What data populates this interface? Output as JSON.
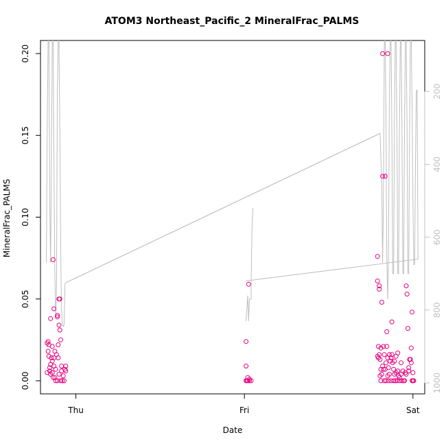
{
  "chart_data": {
    "type": "scatter",
    "title": "ATOM3 Northeast_Pacific_2 MineralFrac_PALMS",
    "xlabel": "Date",
    "ylabel": "MineralFrac_PALMS",
    "x_ticks": [
      {
        "label": "Thu",
        "value": 0
      },
      {
        "label": "Fri",
        "value": 1
      },
      {
        "label": "Sat",
        "value": 2
      }
    ],
    "xlim": [
      -0.21,
      2.07
    ],
    "ylim": [
      -0.008,
      0.208
    ],
    "y_ticks": [
      "0.00",
      "0.05",
      "0.10",
      "0.15",
      "0.20"
    ],
    "y2_ticks": [
      "200",
      "400",
      "600",
      "800",
      "1000"
    ],
    "y2lim": [
      1030,
      60
    ],
    "grid": false,
    "legend": "none",
    "colors": {
      "points": "#e6007e",
      "altitude_line": "#bebebe",
      "axis": "#000000",
      "right_axis": "#c0c0c0"
    },
    "series": [
      {
        "values": [
          [
            -0.17,
            0.005
          ],
          [
            -0.17,
            0.023
          ],
          [
            -0.165,
            0.024
          ],
          [
            -0.165,
            0.018
          ],
          [
            -0.16,
            0.015
          ],
          [
            -0.16,
            0.022
          ],
          [
            -0.155,
            0.006
          ],
          [
            -0.155,
            0.008
          ],
          [
            -0.15,
            0.004
          ],
          [
            -0.15,
            0.038
          ],
          [
            -0.15,
            0.01
          ],
          [
            -0.145,
            0.014
          ],
          [
            -0.14,
            0.021
          ],
          [
            -0.14,
            0.012
          ],
          [
            -0.14,
            0.005
          ],
          [
            -0.135,
            0.002
          ],
          [
            -0.135,
            0.074
          ],
          [
            -0.13,
            0.014
          ],
          [
            -0.13,
            0.044
          ],
          [
            -0.13,
            0.009
          ],
          [
            -0.125,
            0.018
          ],
          [
            -0.125,
            0.002
          ],
          [
            -0.12,
            0.0
          ],
          [
            -0.12,
            0.007
          ],
          [
            -0.115,
            0.016
          ],
          [
            -0.11,
            0.04
          ],
          [
            -0.11,
            0.039
          ],
          [
            -0.11,
            0.0
          ],
          [
            -0.105,
            0.022
          ],
          [
            -0.105,
            0.014
          ],
          [
            -0.1,
            0.004
          ],
          [
            -0.1,
            0.034
          ],
          [
            -0.1,
            0.05
          ],
          [
            -0.095,
            0.05
          ],
          [
            -0.095,
            0.031
          ],
          [
            -0.09,
            0.025
          ],
          [
            -0.09,
            0.0
          ],
          [
            -0.085,
            0.009
          ],
          [
            -0.085,
            0.006
          ],
          [
            -0.08,
            0.0
          ],
          [
            -0.075,
            0.003
          ],
          [
            -0.07,
            0.0
          ],
          [
            -0.065,
            0.007
          ],
          [
            -0.06,
            0.009
          ],
          [
            -0.06,
            0.006
          ],
          [
            1.01,
            0.024
          ],
          [
            1.01,
            0.009
          ],
          [
            1.01,
            0.0
          ],
          [
            1.015,
            0.0
          ],
          [
            1.02,
            0.002
          ],
          [
            1.02,
            0.0
          ],
          [
            1.025,
            0.059
          ],
          [
            1.03,
            0.0
          ],
          [
            1.03,
            0.001
          ],
          [
            1.04,
            0.0
          ],
          [
            1.79,
            0.076
          ],
          [
            1.79,
            0.061
          ],
          [
            1.79,
            0.015
          ],
          [
            1.795,
            0.014
          ],
          [
            1.795,
            0.021
          ],
          [
            1.8,
            0.058
          ],
          [
            1.8,
            0.056
          ],
          [
            1.8,
            0.016
          ],
          [
            1.805,
            0.013
          ],
          [
            1.805,
            0.003
          ],
          [
            1.81,
            0.007
          ],
          [
            1.81,
            0.02
          ],
          [
            1.81,
            0.0
          ],
          [
            1.815,
            0.048
          ],
          [
            1.815,
            0.004
          ],
          [
            1.82,
            0.125
          ],
          [
            1.82,
            0.2
          ],
          [
            1.82,
            0.009
          ],
          [
            1.825,
            0.021
          ],
          [
            1.825,
            0.007
          ],
          [
            1.83,
            0.0
          ],
          [
            1.83,
            0.016
          ],
          [
            1.835,
            0.125
          ],
          [
            1.835,
            0.007
          ],
          [
            1.84,
            0.0
          ],
          [
            1.84,
            0.011
          ],
          [
            1.845,
            0.03
          ],
          [
            1.845,
            0.021
          ],
          [
            1.85,
            0.2
          ],
          [
            1.85,
            0.014
          ],
          [
            1.85,
            0.003
          ],
          [
            1.855,
            0.008
          ],
          [
            1.855,
            0.0
          ],
          [
            1.86,
            0.016
          ],
          [
            1.86,
            0.004
          ],
          [
            1.865,
            0.012
          ],
          [
            1.87,
            0.0
          ],
          [
            1.87,
            0.014
          ],
          [
            1.875,
            0.036
          ],
          [
            1.875,
            0.016
          ],
          [
            1.88,
            0.011
          ],
          [
            1.885,
            0.007
          ],
          [
            1.885,
            0.0
          ],
          [
            1.89,
            0.004
          ],
          [
            1.89,
            0.012
          ],
          [
            1.895,
            0.0
          ],
          [
            1.9,
            0.005
          ],
          [
            1.9,
            0.015
          ],
          [
            1.905,
            0.0
          ],
          [
            1.91,
            0.017
          ],
          [
            1.91,
            0.006
          ],
          [
            1.915,
            0.003
          ],
          [
            1.92,
            0.002
          ],
          [
            1.92,
            0.0
          ],
          [
            1.93,
            0.004
          ],
          [
            1.93,
            0.011
          ],
          [
            1.935,
            0.0
          ],
          [
            1.94,
            0.006
          ],
          [
            1.945,
            0.0
          ],
          [
            1.95,
            0.0
          ],
          [
            1.955,
            0.005
          ],
          [
            1.96,
            0.004
          ],
          [
            1.96,
            0.058
          ],
          [
            1.965,
            0.053
          ],
          [
            1.97,
            0.032
          ],
          [
            1.975,
            0.006
          ],
          [
            1.975,
            0.008
          ],
          [
            1.98,
            0.013
          ],
          [
            1.985,
            0.013
          ],
          [
            1.99,
            0.011
          ],
          [
            1.99,
            0.02
          ],
          [
            1.995,
            0.0
          ],
          [
            1.995,
            0.042
          ],
          [
            2.0,
            0.0
          ],
          [
            2.0,
            0.005
          ],
          [
            2.005,
            0.0
          ]
        ]
      }
    ],
    "right_axis_series": {
      "values": [
        [
          -0.175,
          670
        ],
        [
          -0.17,
          300
        ],
        [
          -0.165,
          60
        ],
        [
          -0.16,
          60
        ],
        [
          -0.155,
          500
        ],
        [
          -0.15,
          670
        ],
        [
          -0.145,
          380
        ],
        [
          -0.14,
          60
        ],
        [
          -0.135,
          60
        ],
        [
          -0.13,
          380
        ],
        [
          -0.125,
          700
        ],
        [
          -0.12,
          810
        ],
        [
          -0.115,
          760
        ],
        [
          -0.11,
          200
        ],
        [
          -0.105,
          60
        ],
        [
          -0.1,
          60
        ],
        [
          -0.095,
          300
        ],
        [
          -0.09,
          640
        ],
        [
          -0.085,
          800
        ],
        [
          -0.08,
          840
        ],
        [
          -0.075,
          845
        ],
        [
          -0.07,
          840
        ],
        [
          -0.065,
          730
        ],
        [
          -0.06,
          725
        ],
        [
          1.805,
          315
        ],
        [
          1.81,
          380
        ],
        [
          1.815,
          460
        ],
        [
          1.82,
          670
        ],
        [
          1.825,
          500
        ],
        [
          1.83,
          60
        ],
        [
          1.835,
          60
        ],
        [
          1.84,
          250
        ],
        [
          1.845,
          650
        ],
        [
          1.85,
          770
        ],
        [
          1.855,
          650
        ],
        [
          1.86,
          250
        ],
        [
          1.865,
          60
        ],
        [
          1.87,
          60
        ],
        [
          1.875,
          300
        ],
        [
          1.88,
          700
        ],
        [
          1.885,
          700
        ],
        [
          1.89,
          300
        ],
        [
          1.895,
          60
        ],
        [
          1.9,
          60
        ],
        [
          1.905,
          300
        ],
        [
          1.91,
          700
        ],
        [
          1.915,
          700
        ],
        [
          1.92,
          300
        ],
        [
          1.925,
          60
        ],
        [
          1.93,
          60
        ],
        [
          1.935,
          300
        ],
        [
          1.94,
          700
        ],
        [
          1.945,
          700
        ],
        [
          1.95,
          300
        ],
        [
          1.955,
          60
        ],
        [
          1.96,
          60
        ],
        [
          1.965,
          300
        ],
        [
          1.97,
          700
        ],
        [
          1.975,
          700
        ],
        [
          1.98,
          300
        ],
        [
          1.985,
          60
        ],
        [
          1.99,
          60
        ],
        [
          1.995,
          250
        ],
        [
          2.0,
          500
        ],
        [
          2.005,
          675
        ],
        [
          2.01,
          675
        ],
        [
          2.015,
          400
        ],
        [
          2.02,
          200
        ],
        [
          2.025,
          195
        ],
        [
          2.03,
          660
        ]
      ],
      "segment_fri": [
        [
          1.01,
          830
        ],
        [
          1.02,
          760
        ],
        [
          1.025,
          830
        ],
        [
          1.03,
          770
        ],
        [
          1.04,
          770
        ],
        [
          1.04,
          730
        ],
        [
          1.045,
          580
        ],
        [
          1.05,
          520
        ]
      ],
      "connector_lines": [
        [
          [
            -0.06,
            725
          ],
          [
            1.805,
            315
          ]
        ],
        [
          [
            1.01,
            720
          ],
          [
            2.03,
            660
          ]
        ]
      ]
    }
  }
}
